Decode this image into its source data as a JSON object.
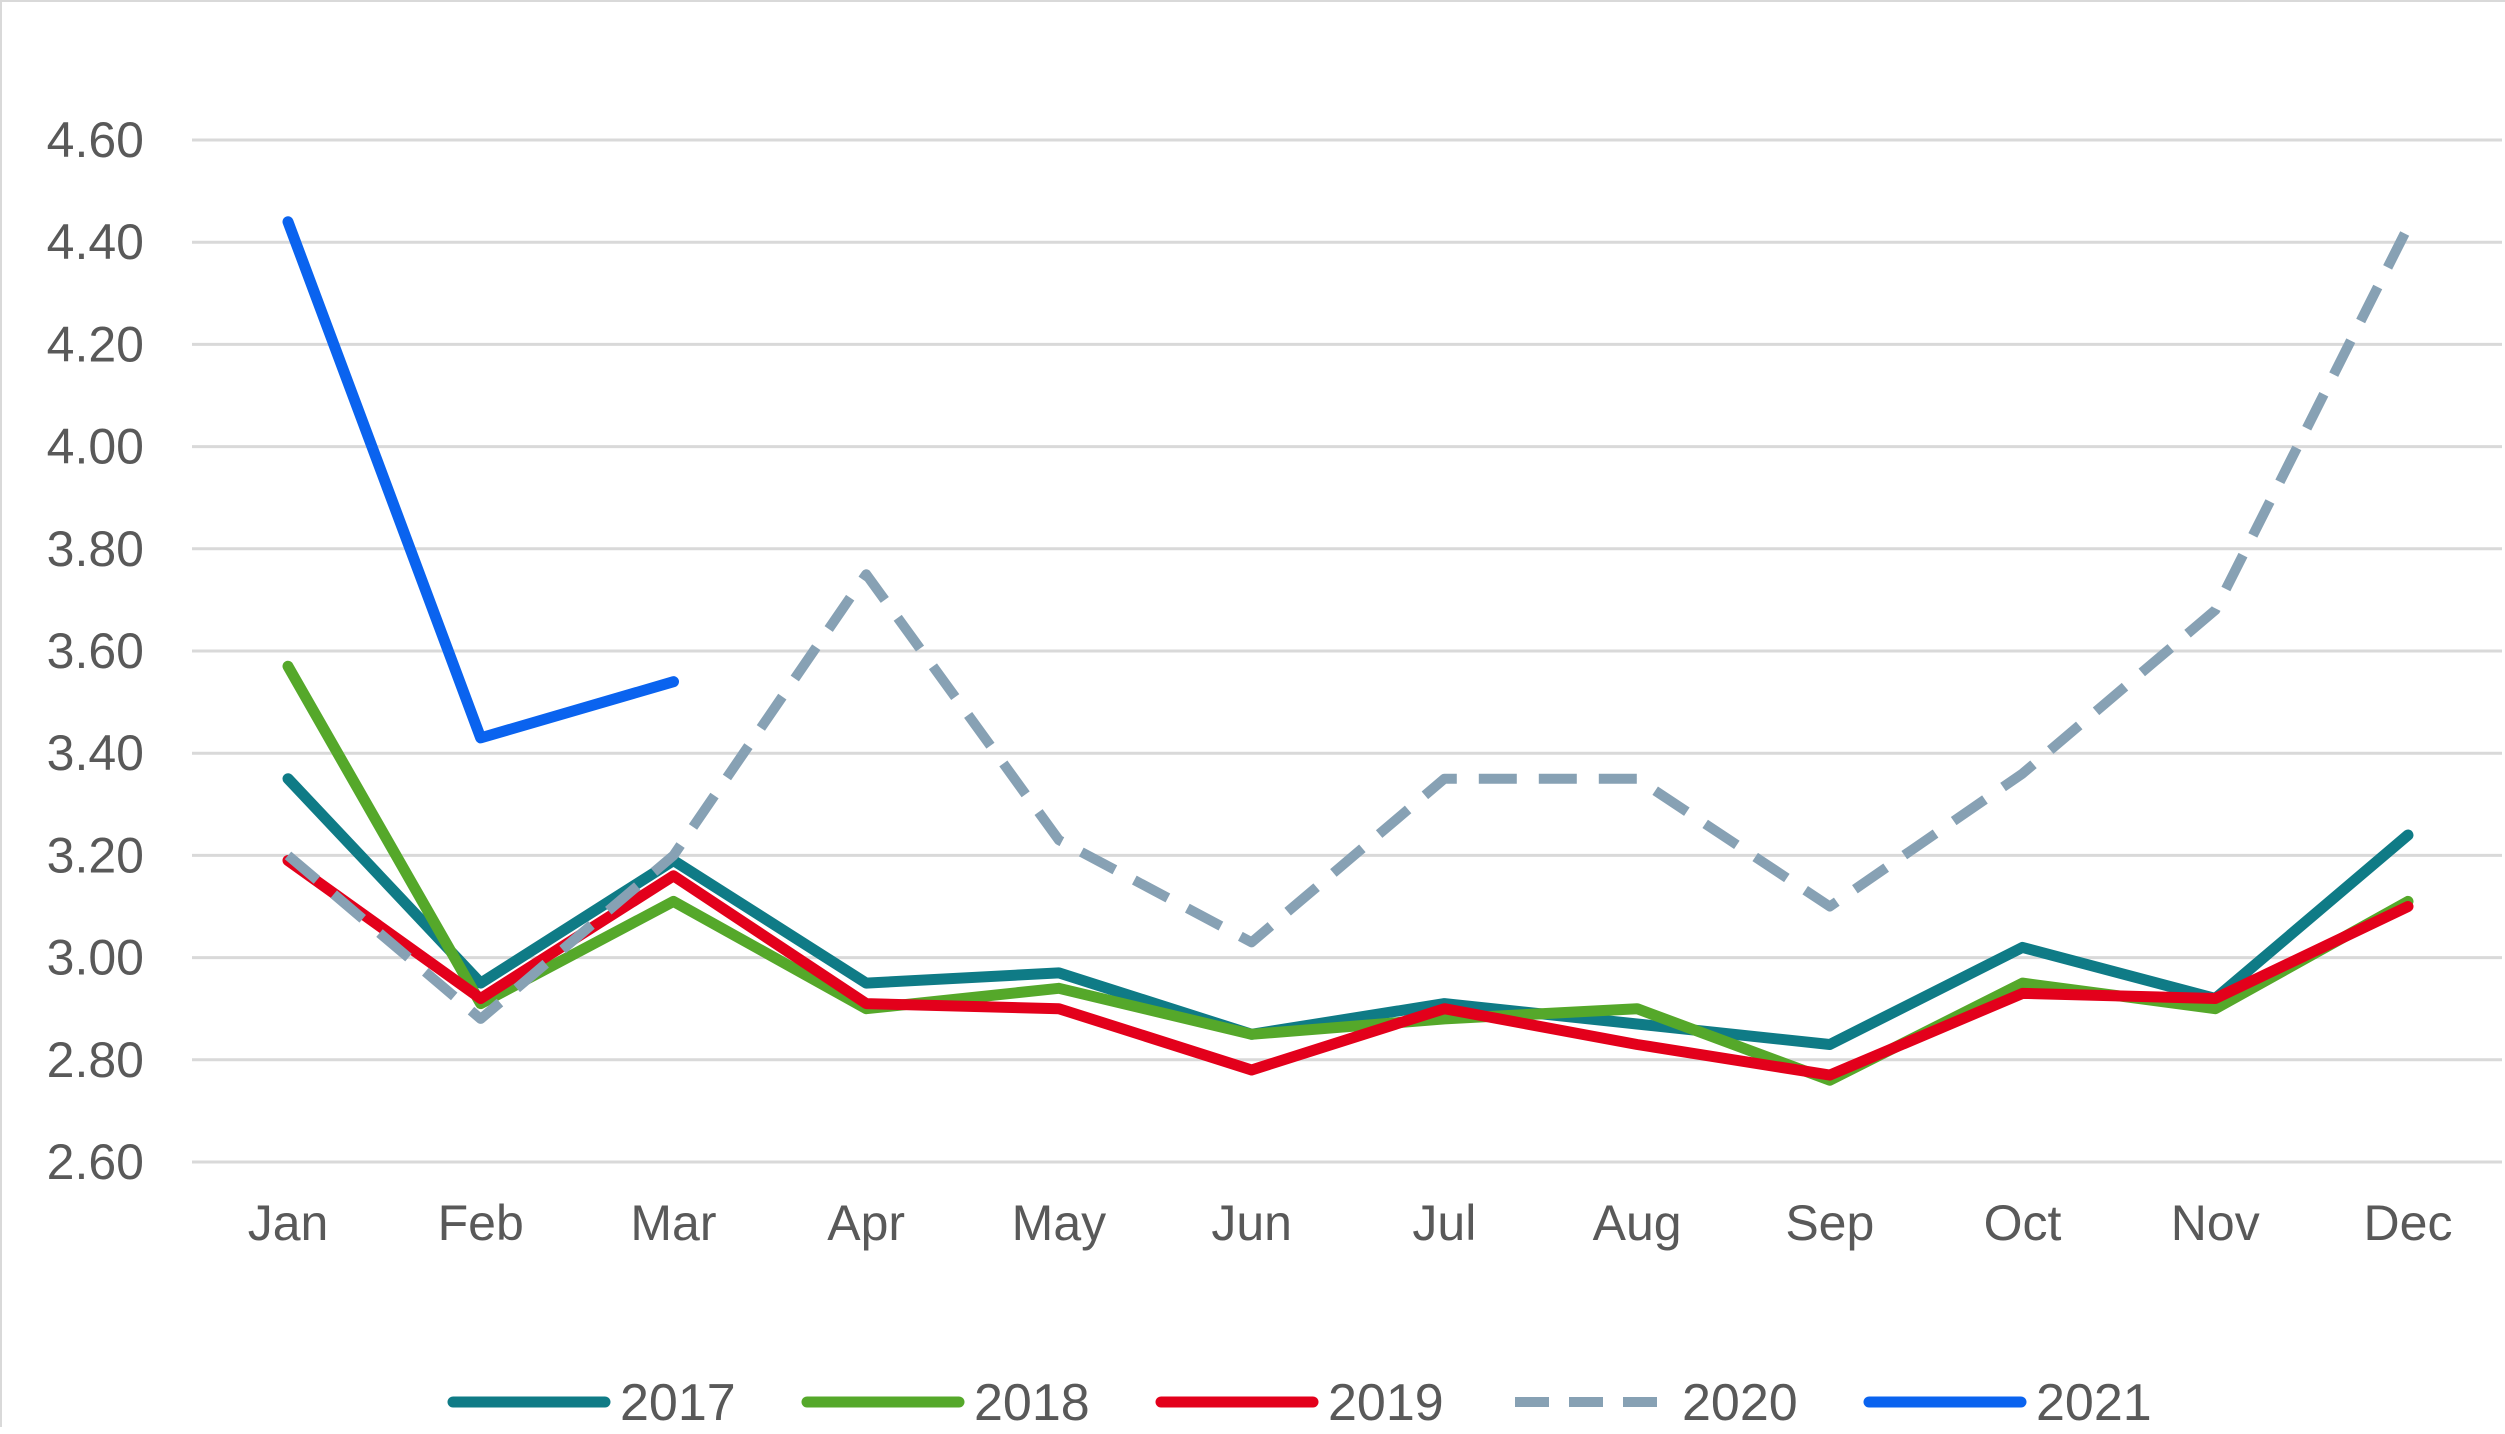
{
  "chart_data": {
    "type": "line",
    "title": "",
    "xlabel": "",
    "ylabel": "",
    "categories": [
      "Jan",
      "Feb",
      "Mar",
      "Apr",
      "May",
      "Jun",
      "Jul",
      "Aug",
      "Sep",
      "Oct",
      "Nov",
      "Dec"
    ],
    "ylim": [
      2.6,
      4.6
    ],
    "yticks": [
      "2.60",
      "2.80",
      "3.00",
      "3.20",
      "3.40",
      "3.60",
      "3.80",
      "4.00",
      "4.20",
      "4.40",
      "4.60"
    ],
    "grid": true,
    "legend_position": "bottom",
    "series": [
      {
        "name": "2017",
        "color": "#0f7b86",
        "dash": "solid",
        "values": [
          3.35,
          2.95,
          3.19,
          2.95,
          2.97,
          2.85,
          2.91,
          2.87,
          2.83,
          3.02,
          2.92,
          3.24
        ]
      },
      {
        "name": "2018",
        "color": "#55a82a",
        "dash": "solid",
        "values": [
          3.57,
          2.91,
          3.11,
          2.9,
          2.94,
          2.85,
          2.88,
          2.9,
          2.76,
          2.95,
          2.9,
          3.11
        ]
      },
      {
        "name": "2019",
        "color": "#e3001b",
        "dash": "solid",
        "values": [
          3.19,
          2.92,
          3.16,
          2.91,
          2.9,
          2.78,
          2.9,
          2.83,
          2.77,
          2.93,
          2.92,
          3.1
        ]
      },
      {
        "name": "2020",
        "color": "#87a1b4",
        "dash": "dashed",
        "values": [
          3.2,
          2.88,
          3.2,
          3.75,
          3.23,
          3.03,
          3.35,
          3.35,
          3.1,
          3.36,
          3.68,
          4.43
        ]
      },
      {
        "name": "2021",
        "color": "#0a63ef",
        "dash": "solid",
        "values": [
          4.44,
          3.43,
          3.54,
          null,
          null,
          null,
          null,
          null,
          null,
          null,
          null,
          null
        ]
      }
    ]
  }
}
